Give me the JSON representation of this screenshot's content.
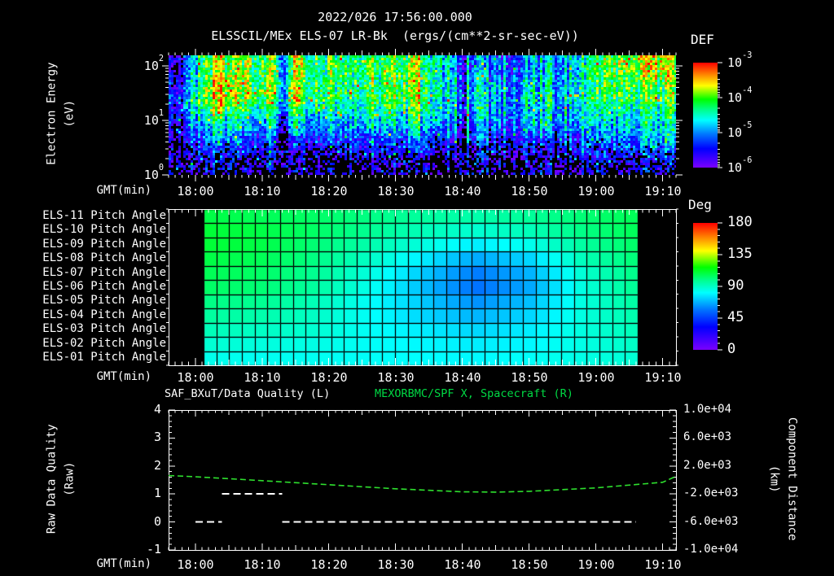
{
  "window": {
    "background": "#000000"
  },
  "header": {
    "date_title": "2022/026 17:56:00.000",
    "instrument_title": "ELSSCIL/MEx ELS-07 LR-Bk",
    "units_title": "(ergs/(cm**2-sr-sec-eV))"
  },
  "colors": {
    "background": "#000000",
    "text": "#ffffff",
    "title_green": "#00d944",
    "curve_green": "#2ee02e",
    "quality_white": "#ffffff",
    "rainbow_stops": [
      [
        0.0,
        "#7a00ff"
      ],
      [
        0.18,
        "#0000ff"
      ],
      [
        0.32,
        "#0078ff"
      ],
      [
        0.45,
        "#00ffff"
      ],
      [
        0.55,
        "#00ff8c"
      ],
      [
        0.65,
        "#00ff00"
      ],
      [
        0.78,
        "#ffff00"
      ],
      [
        0.88,
        "#ff8c00"
      ],
      [
        1.0,
        "#ff0000"
      ]
    ]
  },
  "axes": {
    "gmt_label": "GMT(min)",
    "time_ticks": [
      "18:00",
      "18:10",
      "18:20",
      "18:30",
      "18:40",
      "18:50",
      "19:00",
      "19:10"
    ],
    "time_start": "17:56",
    "time_end": "19:12"
  },
  "top_panel": {
    "ylabel_line1": "Electron Energy",
    "ylabel_line2": "(eV)",
    "ytick_base": "10",
    "ytick_exps": [
      "2",
      "1",
      "0"
    ],
    "colorbar_label": "DEF",
    "cb_base": "10",
    "cb_exps": [
      "-3",
      "-4",
      "-5",
      "-6"
    ]
  },
  "pitch_panel": {
    "colorbar_label": "Deg",
    "cb_ticks": [
      "180",
      "135",
      "90",
      "45",
      "0"
    ]
  },
  "bottom_panel": {
    "left_title": "SAF_BXuT/Data Quality (L)",
    "right_title": "MEXORBMC/SPF X, Spacecraft (R)",
    "left_ylabel_line1": "Raw Data Quality",
    "left_ylabel_line2": "(Raw)",
    "left_ticks": [
      "4",
      "3",
      "2",
      "1",
      "0",
      "-1"
    ],
    "right_ylabel_line1": "Component Distance",
    "right_ylabel_line2": "(km)",
    "right_ticks": [
      "1.0e+04",
      "6.0e+03",
      "2.0e+03",
      "-2.0e+03",
      "-6.0e+03",
      "-1.0e+04"
    ]
  },
  "chart_data": [
    {
      "type": "heatmap",
      "name": "electron-energy-spectrogram",
      "title": "ELSSCIL/MEx ELS-07 LR-Bk",
      "value_units": "log10 DEF ergs/(cm**2-sr-sec-eV)",
      "x_axis": {
        "label": "GMT(min)",
        "start": "17:56",
        "end": "19:12"
      },
      "y_axis": {
        "label": "Electron Energy (eV)",
        "scale": "log",
        "min_ev": 1,
        "max_ev": 150
      },
      "colorbar": {
        "label": "DEF",
        "min": 1e-06,
        "max": 0.001
      },
      "time_bin_centers_min": [
        2,
        6,
        10,
        14,
        18,
        22,
        26,
        30,
        34,
        38,
        42,
        46,
        50,
        54,
        58,
        62,
        66,
        70,
        74
      ],
      "energy_band_centers_ev": [
        60,
        25,
        10,
        4,
        1.6
      ],
      "log10_def_rows": [
        [
          -5.2,
          -4.15,
          -4.05,
          -4.1,
          -4.15,
          -4.25,
          -4.2,
          -4.25,
          -4.15,
          -4.3,
          -4.6,
          -5.1,
          -5.2,
          -5.1,
          -4.9,
          -4.6,
          -4.15,
          -4.0,
          -4.0
        ],
        [
          -4.9,
          -4.0,
          -3.95,
          -4.0,
          -4.05,
          -4.2,
          -4.25,
          -4.2,
          -4.1,
          -4.25,
          -4.5,
          -4.85,
          -4.9,
          -4.8,
          -4.65,
          -4.55,
          -4.35,
          -4.2,
          -4.15
        ],
        [
          -5.1,
          -4.55,
          -4.55,
          -4.65,
          -4.75,
          -4.85,
          -4.7,
          -4.6,
          -4.65,
          -4.55,
          -4.75,
          -4.95,
          -5.0,
          -4.9,
          -4.8,
          -4.75,
          -4.7,
          -4.55,
          -4.45
        ],
        [
          -5.5,
          -5.25,
          -5.2,
          -5.3,
          -5.35,
          -5.4,
          -5.3,
          -5.25,
          -5.3,
          -5.2,
          -5.3,
          -5.45,
          -5.5,
          -5.45,
          -5.35,
          -5.3,
          -5.2,
          -5.0,
          -4.9
        ],
        [
          -5.85,
          -5.7,
          -5.65,
          -5.7,
          -5.75,
          -5.8,
          -5.75,
          -5.7,
          -5.75,
          -5.7,
          -5.75,
          -5.85,
          -5.9,
          -5.85,
          -5.8,
          -5.75,
          -5.7,
          -5.6,
          -5.55
        ]
      ]
    },
    {
      "type": "heatmap",
      "name": "pitch-angle-panels",
      "colorbar": {
        "label": "Deg",
        "min": 0,
        "max": 180
      },
      "data_start": "18:01",
      "data_end": "19:06",
      "row_labels": [
        "ELS-11 Pitch Angle",
        "ELS-10 Pitch Angle",
        "ELS-09 Pitch Angle",
        "ELS-08 Pitch Angle",
        "ELS-07 Pitch Angle",
        "ELS-06 Pitch Angle",
        "ELS-05 Pitch Angle",
        "ELS-04 Pitch Angle",
        "ELS-03 Pitch Angle",
        "ELS-02 Pitch Angle",
        "ELS-01 Pitch Angle"
      ],
      "time_points": [
        "18:02",
        "18:10",
        "18:18",
        "18:26",
        "18:34",
        "18:42",
        "18:50",
        "18:58",
        "19:06"
      ],
      "pitch_deg_rows": [
        [
          108,
          106,
          104,
          100,
          96,
          94,
          97,
          102,
          106
        ],
        [
          110,
          108,
          104,
          98,
          92,
          88,
          92,
          100,
          106
        ],
        [
          110,
          108,
          102,
          94,
          86,
          78,
          84,
          96,
          104
        ],
        [
          108,
          106,
          100,
          90,
          78,
          66,
          74,
          92,
          102
        ],
        [
          106,
          104,
          98,
          86,
          72,
          58,
          68,
          88,
          100
        ],
        [
          104,
          102,
          96,
          84,
          70,
          56,
          66,
          86,
          98
        ],
        [
          100,
          98,
          92,
          82,
          72,
          62,
          70,
          86,
          96
        ],
        [
          96,
          94,
          90,
          82,
          74,
          68,
          74,
          86,
          94
        ],
        [
          92,
          90,
          88,
          82,
          78,
          74,
          78,
          86,
          92
        ],
        [
          88,
          86,
          85,
          82,
          80,
          78,
          80,
          85,
          90
        ],
        [
          84,
          83,
          83,
          82,
          81,
          80,
          82,
          85,
          88
        ]
      ]
    },
    {
      "type": "line",
      "name": "quality-and-distance",
      "left_series": {
        "name": "SAF_BXuT/Data Quality (L)",
        "style": "white-dashed",
        "ylim": [
          -1,
          4
        ],
        "segments": [
          {
            "value": 0,
            "start": "18:00",
            "end": "18:04"
          },
          {
            "value": 1,
            "start": "18:04",
            "end": "18:13"
          },
          {
            "value": 0,
            "start": "18:13",
            "end": "19:06"
          }
        ]
      },
      "right_series": {
        "name": "MEXORBMC/SPF X, Spacecraft (R)",
        "style": "green-dashed",
        "ylim": [
          -10000,
          10000
        ],
        "x": [
          "17:56",
          "18:00",
          "18:10",
          "18:20",
          "18:30",
          "18:40",
          "18:45",
          "18:50",
          "19:00",
          "19:10",
          "19:12"
        ],
        "y_km": [
          640,
          470,
          -90,
          -680,
          -1260,
          -1690,
          -1730,
          -1620,
          -1130,
          -330,
          520
        ]
      }
    }
  ]
}
